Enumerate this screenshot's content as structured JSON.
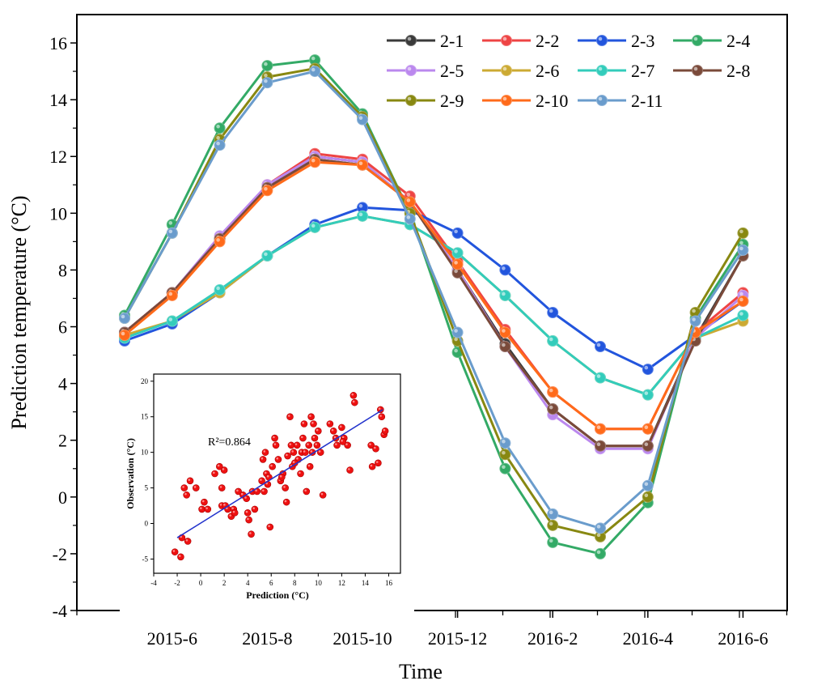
{
  "chart_data": [
    {
      "type": "line",
      "xlabel": "Time",
      "ylabel": "Prediction temperature (°C)",
      "ylim": [
        -4,
        17
      ],
      "yticks": [
        -4,
        -2,
        0,
        2,
        4,
        6,
        8,
        10,
        12,
        14,
        16
      ],
      "x": [
        "2015-5",
        "2015-6",
        "2015-7",
        "2015-8",
        "2015-9",
        "2015-10",
        "2015-11",
        "2015-12",
        "2016-1",
        "2016-2",
        "2016-3",
        "2016-4",
        "2016-5",
        "2016-6"
      ],
      "xtick_labels": [
        "2015-6",
        "2015-8",
        "2015-10",
        "2015-12",
        "2016-2",
        "2016-4",
        "2016-6"
      ],
      "legend_position": "top-right",
      "grid": false,
      "series": [
        {
          "name": "2-1",
          "color": "#3a3a3a",
          "values": [
            5.8,
            7.2,
            9.1,
            10.9,
            12.0,
            11.8,
            10.4,
            8.0,
            5.4,
            3.1,
            1.8,
            1.8,
            5.6,
            8.5
          ]
        },
        {
          "name": "2-2",
          "color": "#ee4444",
          "values": [
            5.8,
            7.2,
            9.1,
            11.0,
            12.1,
            11.9,
            10.6,
            8.3,
            5.9,
            3.7,
            2.4,
            2.4,
            5.8,
            7.2
          ]
        },
        {
          "name": "2-3",
          "color": "#2255dd",
          "values": [
            5.5,
            6.1,
            7.2,
            8.5,
            9.6,
            10.2,
            10.1,
            9.3,
            8.0,
            6.5,
            5.3,
            4.5,
            5.7,
            6.9
          ]
        },
        {
          "name": "2-4",
          "color": "#33aa66",
          "values": [
            6.4,
            9.6,
            13.0,
            15.2,
            15.4,
            13.5,
            10.0,
            5.1,
            1.0,
            -1.6,
            -2.0,
            -0.2,
            6.3,
            8.9
          ]
        },
        {
          "name": "2-5",
          "color": "#bb88ee",
          "values": [
            5.8,
            7.2,
            9.2,
            11.0,
            12.0,
            11.8,
            10.4,
            8.0,
            5.3,
            2.9,
            1.7,
            1.7,
            5.6,
            7.1
          ]
        },
        {
          "name": "2-6",
          "color": "#ccaa33",
          "values": [
            5.7,
            6.2,
            7.2,
            8.5,
            9.5,
            9.9,
            9.6,
            8.6,
            7.1,
            5.5,
            4.2,
            3.6,
            5.6,
            6.2
          ]
        },
        {
          "name": "2-7",
          "color": "#33ccbb",
          "values": [
            5.6,
            6.2,
            7.3,
            8.5,
            9.5,
            9.9,
            9.6,
            8.6,
            7.1,
            5.5,
            4.2,
            3.6,
            5.6,
            6.4
          ]
        },
        {
          "name": "2-8",
          "color": "#7a4a3a",
          "values": [
            5.8,
            7.2,
            9.1,
            10.9,
            11.9,
            11.7,
            10.4,
            7.9,
            5.3,
            3.1,
            1.8,
            1.8,
            5.5,
            8.5
          ]
        },
        {
          "name": "2-9",
          "color": "#888811",
          "values": [
            6.3,
            9.3,
            12.6,
            14.8,
            15.1,
            13.4,
            10.0,
            5.5,
            1.5,
            -1.0,
            -1.4,
            0.0,
            6.5,
            9.3
          ]
        },
        {
          "name": "2-10",
          "color": "#ff6a1a",
          "values": [
            5.7,
            7.1,
            9.0,
            10.8,
            11.8,
            11.7,
            10.4,
            8.2,
            5.8,
            3.7,
            2.4,
            2.4,
            5.8,
            6.9
          ]
        },
        {
          "name": "2-11",
          "color": "#6a9ccc",
          "values": [
            6.3,
            9.3,
            12.4,
            14.6,
            15.0,
            13.3,
            9.8,
            5.8,
            1.9,
            -0.6,
            -1.1,
            0.4,
            6.2,
            8.7
          ]
        }
      ]
    },
    {
      "type": "scatter",
      "xlabel": "Prediction (°C)",
      "ylabel": "Observation (°C)",
      "xlim": [
        -4,
        17
      ],
      "ylim": [
        -7,
        21
      ],
      "xticks": [
        -4,
        -2,
        0,
        2,
        4,
        6,
        8,
        10,
        12,
        14,
        16
      ],
      "yticks": [
        -5,
        0,
        5,
        10,
        15,
        20
      ],
      "annotation": "R²=0.864",
      "point_color": "#ee1111",
      "fit_line": {
        "color": "#2233cc",
        "x": [
          -2,
          15.5
        ],
        "y": [
          -2,
          16
        ]
      },
      "points": [
        [
          -2.2,
          -4
        ],
        [
          -1.7,
          -4.7
        ],
        [
          -1.6,
          -2
        ],
        [
          -1.1,
          -2.5
        ],
        [
          -1.4,
          5
        ],
        [
          -0.9,
          6
        ],
        [
          -1.2,
          4
        ],
        [
          -0.4,
          5
        ],
        [
          0.1,
          2
        ],
        [
          0.3,
          3
        ],
        [
          0.6,
          2
        ],
        [
          1.2,
          7
        ],
        [
          1.6,
          8
        ],
        [
          1.8,
          5
        ],
        [
          2.0,
          7.5
        ],
        [
          1.8,
          2.5
        ],
        [
          2.1,
          2.5
        ],
        [
          2.3,
          2
        ],
        [
          2.6,
          1
        ],
        [
          2.8,
          2
        ],
        [
          2.9,
          1.5
        ],
        [
          3.2,
          4.5
        ],
        [
          3.6,
          4
        ],
        [
          3.9,
          3.5
        ],
        [
          4.0,
          1.5
        ],
        [
          4.1,
          0.5
        ],
        [
          4.4,
          4.5
        ],
        [
          4.6,
          2
        ],
        [
          4.3,
          -1.5
        ],
        [
          5.4,
          4.5
        ],
        [
          5.2,
          6
        ],
        [
          5.3,
          9
        ],
        [
          5.5,
          10
        ],
        [
          5.6,
          7
        ],
        [
          5.8,
          6.5
        ],
        [
          5.9,
          -0.5
        ],
        [
          6.1,
          8
        ],
        [
          6.3,
          12
        ],
        [
          6.4,
          11
        ],
        [
          6.6,
          9
        ],
        [
          6.8,
          6
        ],
        [
          7.0,
          7
        ],
        [
          7.2,
          5
        ],
        [
          7.3,
          3
        ],
        [
          7.4,
          9.5
        ],
        [
          7.6,
          15
        ],
        [
          7.7,
          11
        ],
        [
          7.8,
          8
        ],
        [
          7.9,
          10
        ],
        [
          8.2,
          11
        ],
        [
          8.3,
          9
        ],
        [
          8.5,
          7
        ],
        [
          8.6,
          10
        ],
        [
          8.7,
          12
        ],
        [
          8.8,
          14
        ],
        [
          8.9,
          10
        ],
        [
          9.0,
          4.5
        ],
        [
          9.2,
          11
        ],
        [
          9.3,
          8
        ],
        [
          9.4,
          15
        ],
        [
          9.6,
          14
        ],
        [
          9.7,
          12
        ],
        [
          9.9,
          11
        ],
        [
          10.0,
          13
        ],
        [
          10.2,
          10
        ],
        [
          10.4,
          4
        ],
        [
          11.0,
          14
        ],
        [
          11.3,
          13
        ],
        [
          11.5,
          12
        ],
        [
          11.6,
          11
        ],
        [
          12.0,
          13.5
        ],
        [
          12.2,
          12
        ],
        [
          12.5,
          11
        ],
        [
          12.7,
          7.5
        ],
        [
          13.0,
          18
        ],
        [
          13.1,
          17
        ],
        [
          14.5,
          11
        ],
        [
          14.6,
          8
        ],
        [
          14.9,
          10.5
        ],
        [
          15.1,
          8.5
        ],
        [
          15.3,
          16
        ],
        [
          15.4,
          15
        ],
        [
          15.6,
          12.5
        ],
        [
          15.7,
          13
        ],
        [
          12.1,
          11.5
        ],
        [
          9.5,
          10
        ],
        [
          8.0,
          8.5
        ],
        [
          6.9,
          6.5
        ],
        [
          5.7,
          5.5
        ],
        [
          4.8,
          4.5
        ]
      ]
    }
  ]
}
